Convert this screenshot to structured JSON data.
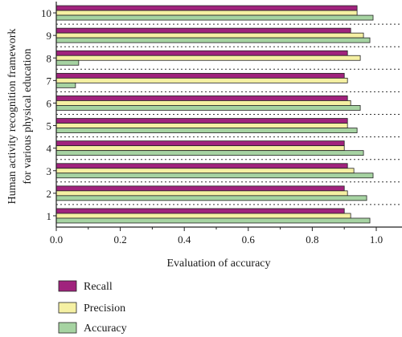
{
  "chart_data": {
    "type": "bar",
    "orientation": "horizontal",
    "categories": [
      "1",
      "2",
      "3",
      "4",
      "5",
      "6",
      "7",
      "8",
      "9",
      "10"
    ],
    "series": [
      {
        "name": "Recall",
        "values": [
          0.9,
          0.9,
          0.91,
          0.9,
          0.91,
          0.91,
          0.9,
          0.91,
          0.92,
          0.94
        ]
      },
      {
        "name": "Precision",
        "values": [
          0.92,
          0.91,
          0.93,
          0.9,
          0.91,
          0.92,
          0.91,
          0.95,
          0.96,
          0.94
        ]
      },
      {
        "name": "Accuracy",
        "values": [
          0.98,
          0.97,
          0.99,
          0.96,
          0.94,
          0.95,
          0.06,
          0.07,
          0.98,
          0.99
        ]
      }
    ],
    "colors": {
      "Recall": "#a0237d",
      "Precision": "#f5f0a3",
      "Accuracy": "#a6d3a2"
    },
    "xlabel": "Evaluation of accuracy",
    "ylabel_line1": "Human activity recognition framework",
    "ylabel_line2": "for various physical education",
    "xlim": [
      0.0,
      1.0
    ],
    "x_ticks": [
      "0.0",
      "0.2",
      "0.4",
      "0.6",
      "0.8",
      "1.0"
    ],
    "grid": "dotted horizontal separators",
    "legend_position": "bottom-left"
  }
}
